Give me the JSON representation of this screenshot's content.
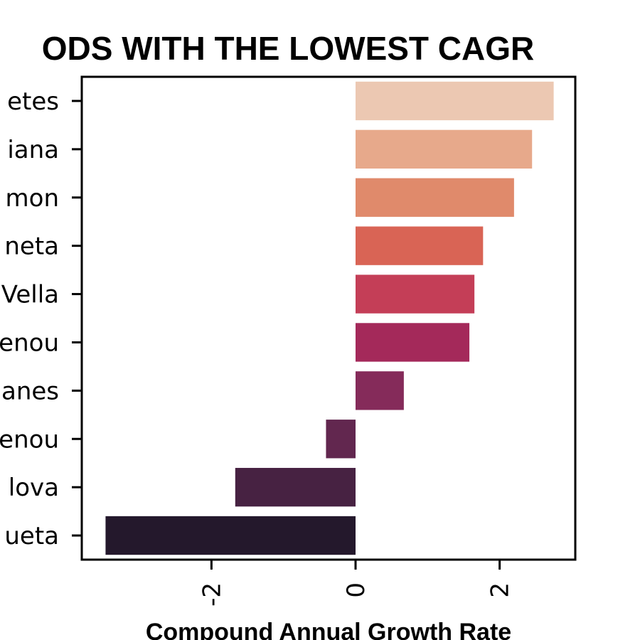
{
  "chart_data": {
    "type": "bar",
    "orientation": "horizontal",
    "title": "ODS WITH THE LOWEST CAGR",
    "xlabel": "Compound Annual Growth Rate",
    "ylabel": "",
    "categories": [
      "etes",
      "iana",
      "mon",
      "neta",
      "Vella",
      "enou",
      "anes",
      "enou",
      "lova",
      "ueta"
    ],
    "values": [
      2.75,
      2.45,
      2.2,
      1.77,
      1.65,
      1.58,
      0.67,
      -0.41,
      -1.67,
      -3.47
    ],
    "xlim": [
      -3.8,
      3.05
    ],
    "xticks": [
      -2,
      0,
      2
    ],
    "xtick_labels": [
      "-2",
      "0",
      "2"
    ],
    "colors": [
      "#ecc8b2",
      "#e7a98b",
      "#e08a6b",
      "#d96455",
      "#c43e57",
      "#a4295a",
      "#852b5a",
      "#62274f",
      "#472242",
      "#24182c"
    ],
    "grid": false,
    "legend": "none"
  }
}
